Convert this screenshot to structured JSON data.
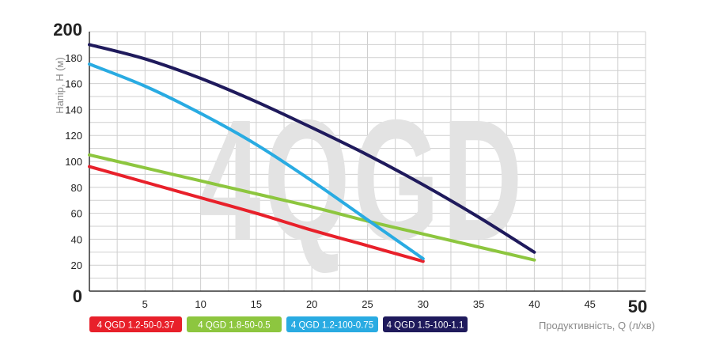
{
  "chart_data": {
    "type": "line",
    "title": "",
    "watermark": "4QGD",
    "xlabel": "Продуктивність, Q (л/хв)",
    "ylabel": "Напір, Н (м)",
    "xlim": [
      0,
      50
    ],
    "ylim": [
      0,
      200
    ],
    "x_ticks": [
      0,
      5,
      10,
      15,
      20,
      25,
      30,
      35,
      40,
      45,
      50
    ],
    "y_ticks": [
      0,
      20,
      40,
      60,
      80,
      100,
      120,
      140,
      160,
      180,
      200
    ],
    "x_tick_labels": [
      "0",
      "5",
      "10",
      "15",
      "20",
      "25",
      "30",
      "35",
      "40",
      "45",
      "50"
    ],
    "y_tick_labels": [
      "0",
      "20",
      "40",
      "60",
      "80",
      "100",
      "120",
      "140",
      "160",
      "180",
      "200"
    ],
    "grid": true,
    "series": [
      {
        "name": "4 QGD 1.2-50-0.37",
        "color": "#e8202a",
        "x": [
          0,
          5,
          10,
          15,
          20,
          25,
          30
        ],
        "y": [
          96,
          84,
          72,
          60,
          47,
          35,
          23
        ]
      },
      {
        "name": "4 QGD 1.8-50-0.5",
        "color": "#8dc63f",
        "x": [
          0,
          5,
          10,
          15,
          20,
          25,
          30,
          35,
          40
        ],
        "y": [
          105,
          95,
          85,
          75,
          65,
          54,
          44,
          34,
          24
        ]
      },
      {
        "name": "4 QGD 1.2-100-0.75",
        "color": "#29abe2",
        "x": [
          0,
          5,
          10,
          15,
          20,
          25,
          30
        ],
        "y": [
          175,
          158,
          137,
          113,
          85,
          55,
          25
        ]
      },
      {
        "name": "4 QGD 1.5-100-1.1",
        "color": "#1f1a5c",
        "x": [
          0,
          5,
          10,
          15,
          20,
          25,
          30,
          35,
          40
        ],
        "y": [
          190,
          179,
          164,
          146,
          126,
          105,
          82,
          57,
          30
        ]
      }
    ]
  }
}
